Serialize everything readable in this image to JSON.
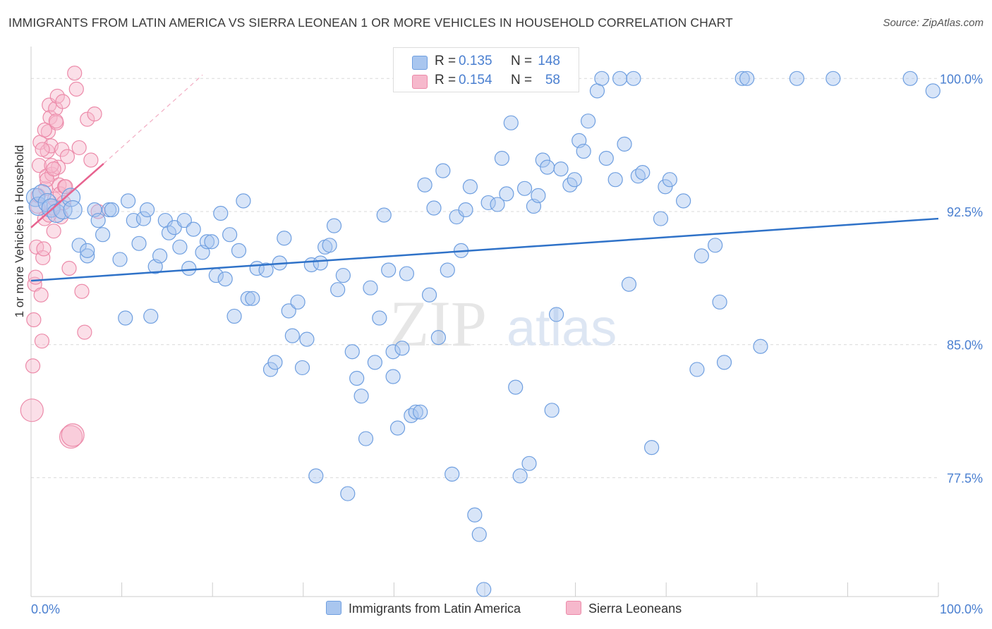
{
  "header": {
    "title": "IMMIGRANTS FROM LATIN AMERICA VS SIERRA LEONEAN 1 OR MORE VEHICLES IN HOUSEHOLD CORRELATION CHART",
    "source": "Source: ZipAtlas.com"
  },
  "watermark": {
    "part1": "ZIP",
    "part2": "atlas"
  },
  "legend_top": {
    "rows": [
      {
        "r_label": "R =",
        "r_value": "0.135",
        "n_label": "N =",
        "n_value": "148"
      },
      {
        "r_label": "R =",
        "r_value": "0.154",
        "n_label": "N =",
        "n_value": "58"
      }
    ]
  },
  "colors": {
    "blue_fill": "#a9c6ef",
    "blue_stroke": "#6f9fe0",
    "blue_line": "#2f72c8",
    "pink_fill": "#f6b8cc",
    "pink_stroke": "#ec8aa9",
    "pink_line": "#e7638f",
    "axis_text": "#4a7fd0",
    "grid": "#d9d9d9"
  },
  "chart_data": {
    "type": "scatter",
    "title": "IMMIGRANTS FROM LATIN AMERICA VS SIERRA LEONEAN 1 OR MORE VEHICLES IN HOUSEHOLD CORRELATION CHART",
    "xlabel": "",
    "ylabel": "1 or more Vehicles in Household",
    "xlim": [
      0,
      100
    ],
    "ylim": [
      70.8,
      101.8
    ],
    "x_tick_labels": [
      {
        "value": 0,
        "label": "0.0%"
      },
      {
        "value": 100,
        "label": "100.0%"
      }
    ],
    "y_tick_labels": [
      {
        "value": 77.5,
        "label": "77.5%"
      },
      {
        "value": 85.0,
        "label": "85.0%"
      },
      {
        "value": 92.5,
        "label": "92.5%"
      },
      {
        "value": 100.0,
        "label": "100.0%"
      }
    ],
    "series": [
      {
        "name": "Immigrants from Latin America",
        "color": "blue",
        "R": 0.135,
        "N": 148,
        "trend": {
          "x": [
            0,
            100
          ],
          "y": [
            88.6,
            92.1
          ],
          "style": "solid"
        },
        "points": [
          [
            0.5,
            93.3
          ],
          [
            0.8,
            92.8
          ],
          [
            1.2,
            93.5
          ],
          [
            1.8,
            93.0
          ],
          [
            2.2,
            92.7
          ],
          [
            2.8,
            92.4
          ],
          [
            3.5,
            92.6
          ],
          [
            4.4,
            93.3
          ],
          [
            4.6,
            92.6
          ],
          [
            5.3,
            90.6
          ],
          [
            6.2,
            90.0
          ],
          [
            6.2,
            90.3
          ],
          [
            7.0,
            92.6
          ],
          [
            7.4,
            92.0
          ],
          [
            7.9,
            91.2
          ],
          [
            8.6,
            92.6
          ],
          [
            8.9,
            92.6
          ],
          [
            9.8,
            89.8
          ],
          [
            10.4,
            86.5
          ],
          [
            10.7,
            93.1
          ],
          [
            11.3,
            92.0
          ],
          [
            11.9,
            90.7
          ],
          [
            12.4,
            92.1
          ],
          [
            12.8,
            92.6
          ],
          [
            13.2,
            86.6
          ],
          [
            13.7,
            89.4
          ],
          [
            14.2,
            90.0
          ],
          [
            14.8,
            92.0
          ],
          [
            15.2,
            91.3
          ],
          [
            15.8,
            91.6
          ],
          [
            16.4,
            90.5
          ],
          [
            16.9,
            92.0
          ],
          [
            17.4,
            89.3
          ],
          [
            17.9,
            91.5
          ],
          [
            18.9,
            90.2
          ],
          [
            19.4,
            90.8
          ],
          [
            19.9,
            90.8
          ],
          [
            20.4,
            88.9
          ],
          [
            20.9,
            92.4
          ],
          [
            21.4,
            88.7
          ],
          [
            21.9,
            91.2
          ],
          [
            22.4,
            86.6
          ],
          [
            22.9,
            90.3
          ],
          [
            23.4,
            93.1
          ],
          [
            23.9,
            87.6
          ],
          [
            24.4,
            87.6
          ],
          [
            24.9,
            89.3
          ],
          [
            25.9,
            89.2
          ],
          [
            26.4,
            83.6
          ],
          [
            26.9,
            84.0
          ],
          [
            27.4,
            89.6
          ],
          [
            27.9,
            91.0
          ],
          [
            28.4,
            86.9
          ],
          [
            28.8,
            85.5
          ],
          [
            29.4,
            87.4
          ],
          [
            29.9,
            83.7
          ],
          [
            30.4,
            85.3
          ],
          [
            30.9,
            89.5
          ],
          [
            31.4,
            77.6
          ],
          [
            31.9,
            89.6
          ],
          [
            32.4,
            90.5
          ],
          [
            32.9,
            90.6
          ],
          [
            33.4,
            91.7
          ],
          [
            33.8,
            88.1
          ],
          [
            34.4,
            88.9
          ],
          [
            34.9,
            76.6
          ],
          [
            35.4,
            84.6
          ],
          [
            35.9,
            83.1
          ],
          [
            36.4,
            82.1
          ],
          [
            36.9,
            79.7
          ],
          [
            37.4,
            88.2
          ],
          [
            37.9,
            84.0
          ],
          [
            38.4,
            86.5
          ],
          [
            38.9,
            92.3
          ],
          [
            39.4,
            89.2
          ],
          [
            39.9,
            84.6
          ],
          [
            39.9,
            83.2
          ],
          [
            40.4,
            80.3
          ],
          [
            40.9,
            84.8
          ],
          [
            41.4,
            89.0
          ],
          [
            41.9,
            81.0
          ],
          [
            42.4,
            81.2
          ],
          [
            42.9,
            81.2
          ],
          [
            43.4,
            94.0
          ],
          [
            43.9,
            87.8
          ],
          [
            44.4,
            92.7
          ],
          [
            44.9,
            85.4
          ],
          [
            45.4,
            94.8
          ],
          [
            45.9,
            89.2
          ],
          [
            46.4,
            77.7
          ],
          [
            46.9,
            92.2
          ],
          [
            47.4,
            90.3
          ],
          [
            47.9,
            92.6
          ],
          [
            48.4,
            93.9
          ],
          [
            48.9,
            75.4
          ],
          [
            49.4,
            74.3
          ],
          [
            49.9,
            71.2
          ],
          [
            50.4,
            93.0
          ],
          [
            51.4,
            92.9
          ],
          [
            51.9,
            95.5
          ],
          [
            52.4,
            93.5
          ],
          [
            52.9,
            97.5
          ],
          [
            53.4,
            82.6
          ],
          [
            53.9,
            77.6
          ],
          [
            54.4,
            93.8
          ],
          [
            54.9,
            78.3
          ],
          [
            55.4,
            92.8
          ],
          [
            55.9,
            93.4
          ],
          [
            56.4,
            95.4
          ],
          [
            56.9,
            95.0
          ],
          [
            57.4,
            81.3
          ],
          [
            57.9,
            86.7
          ],
          [
            58.4,
            94.9
          ],
          [
            59.4,
            94.0
          ],
          [
            59.9,
            94.3
          ],
          [
            60.4,
            96.5
          ],
          [
            60.9,
            95.9
          ],
          [
            61.4,
            97.6
          ],
          [
            62.4,
            99.3
          ],
          [
            62.9,
            100.0
          ],
          [
            63.4,
            95.5
          ],
          [
            64.4,
            94.3
          ],
          [
            64.9,
            100.0
          ],
          [
            65.4,
            96.3
          ],
          [
            65.9,
            88.4
          ],
          [
            66.4,
            100.0
          ],
          [
            66.9,
            94.5
          ],
          [
            67.4,
            94.7
          ],
          [
            68.4,
            79.2
          ],
          [
            69.4,
            92.1
          ],
          [
            69.9,
            93.9
          ],
          [
            70.4,
            94.3
          ],
          [
            71.9,
            93.1
          ],
          [
            73.4,
            83.6
          ],
          [
            73.9,
            90.0
          ],
          [
            75.4,
            90.6
          ],
          [
            75.9,
            87.4
          ],
          [
            76.4,
            84.0
          ],
          [
            78.4,
            100.0
          ],
          [
            78.9,
            100.0
          ],
          [
            80.4,
            84.9
          ],
          [
            84.4,
            100.0
          ],
          [
            88.4,
            100.0
          ],
          [
            96.9,
            100.0
          ],
          [
            99.4,
            99.3
          ]
        ]
      },
      {
        "name": "Sierra Leoneans",
        "color": "pink",
        "R": 0.154,
        "N": 58,
        "trend": {
          "x": [
            0,
            8.0
          ],
          "y": [
            91.6,
            95.2
          ],
          "style": "solid",
          "extension": {
            "x": [
              8.0,
              18.9
            ],
            "y": [
              95.2,
              100.2
            ],
            "style": "dashed"
          }
        },
        "points": [
          [
            0.1,
            81.3
          ],
          [
            0.2,
            83.8
          ],
          [
            0.3,
            86.4
          ],
          [
            0.4,
            88.4
          ],
          [
            0.5,
            88.8
          ],
          [
            0.6,
            90.5
          ],
          [
            0.7,
            92.8
          ],
          [
            0.8,
            93.4
          ],
          [
            0.9,
            95.1
          ],
          [
            1.0,
            96.4
          ],
          [
            1.1,
            87.8
          ],
          [
            1.2,
            85.2
          ],
          [
            1.3,
            89.9
          ],
          [
            1.4,
            90.4
          ],
          [
            1.5,
            92.1
          ],
          [
            1.6,
            93.8
          ],
          [
            1.7,
            94.5
          ],
          [
            1.8,
            95.9
          ],
          [
            1.9,
            97.0
          ],
          [
            2.0,
            98.5
          ],
          [
            2.1,
            97.8
          ],
          [
            2.2,
            96.2
          ],
          [
            2.3,
            94.6
          ],
          [
            2.4,
            92.7
          ],
          [
            2.5,
            91.4
          ],
          [
            2.6,
            93.2
          ],
          [
            2.7,
            98.3
          ],
          [
            2.8,
            97.5
          ],
          [
            2.9,
            99.0
          ],
          [
            3.0,
            95.0
          ],
          [
            3.1,
            94.0
          ],
          [
            3.2,
            93.5
          ],
          [
            3.3,
            92.2
          ],
          [
            3.4,
            96.0
          ],
          [
            3.5,
            98.7
          ],
          [
            3.6,
            93.0
          ],
          [
            3.7,
            93.9
          ],
          [
            1.25,
            96.0
          ],
          [
            1.5,
            97.1
          ],
          [
            1.75,
            94.3
          ],
          [
            2.0,
            92.3
          ],
          [
            2.25,
            95.1
          ],
          [
            2.5,
            94.9
          ],
          [
            2.75,
            97.6
          ],
          [
            3.8,
            93.9
          ],
          [
            4.0,
            95.6
          ],
          [
            4.2,
            89.3
          ],
          [
            4.4,
            79.8
          ],
          [
            4.6,
            79.9
          ],
          [
            4.8,
            100.3
          ],
          [
            5.0,
            99.4
          ],
          [
            5.3,
            96.1
          ],
          [
            5.6,
            88.0
          ],
          [
            5.9,
            85.7
          ],
          [
            6.2,
            97.7
          ],
          [
            6.6,
            95.4
          ],
          [
            7.0,
            98.0
          ],
          [
            7.4,
            92.5
          ]
        ]
      }
    ]
  },
  "bottom_legend": {
    "items": [
      {
        "label": "Immigrants from Latin America"
      },
      {
        "label": "Sierra Leoneans"
      }
    ]
  }
}
